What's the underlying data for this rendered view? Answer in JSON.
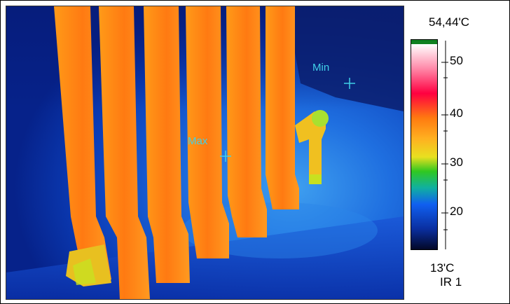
{
  "image": {
    "subject": "thermal image of radiator",
    "markers": [
      {
        "label": "Max"
      },
      {
        "label": "Min"
      }
    ]
  },
  "scale": {
    "max_label": "54,44'C",
    "min_label": "13'C",
    "mode_label": "IR 1",
    "ticks": [
      "50",
      "40",
      "30",
      "20"
    ]
  }
}
